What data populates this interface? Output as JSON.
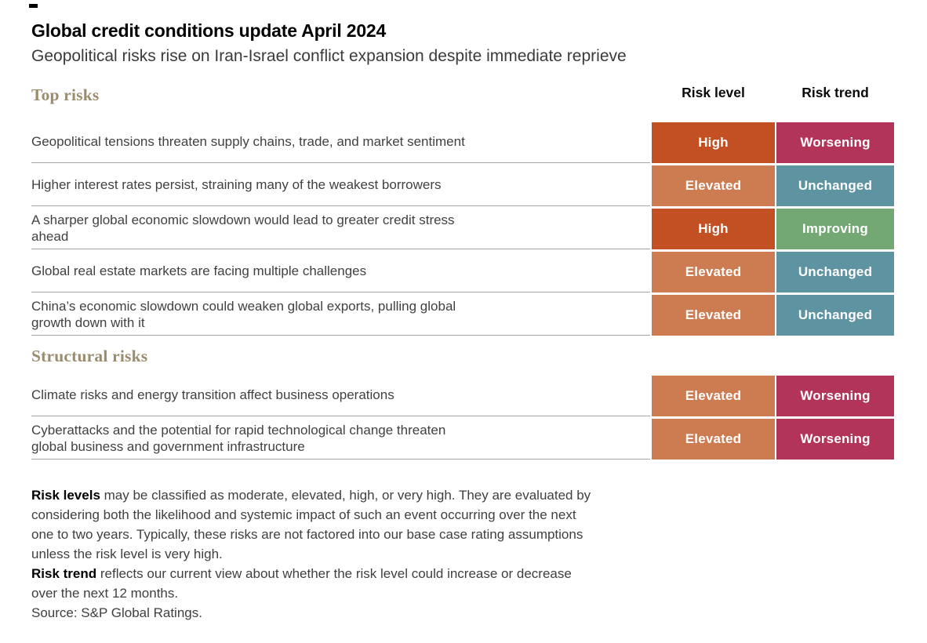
{
  "header": {
    "title": "Global credit conditions update April 2024",
    "subtitle": "Geopolitical risks rise on Iran-Israel conflict expansion despite immediate reprieve"
  },
  "table": {
    "column_headers": {
      "risk_level": "Risk level",
      "risk_trend": "Risk trend"
    },
    "sections": [
      {
        "label": "Top risks",
        "rows": [
          {
            "risk": "Geopolitical tensions threaten supply chains, trade, and market sentiment",
            "level": "High",
            "trend": "Worsening"
          },
          {
            "risk": "Higher interest rates persist, straining many of the weakest borrowers",
            "level": "Elevated",
            "trend": "Unchanged"
          },
          {
            "risk": "A sharper global economic slowdown would lead to greater credit stress\nahead",
            "level": "High",
            "trend": "Improving"
          },
          {
            "risk": "Global real estate markets are facing multiple challenges",
            "level": "Elevated",
            "trend": "Unchanged"
          },
          {
            "risk": "China’s economic slowdown could weaken global exports, pulling global\ngrowth down with it",
            "level": "Elevated",
            "trend": "Unchanged"
          }
        ]
      },
      {
        "label": "Structural risks",
        "rows": [
          {
            "risk": "Climate risks and energy transition affect business operations",
            "level": "Elevated",
            "trend": "Worsening"
          },
          {
            "risk": "Cyberattacks and the potential for rapid technological change threaten\nglobal business and government infrastructure",
            "level": "Elevated",
            "trend": "Worsening"
          }
        ]
      }
    ]
  },
  "legend_colors": {
    "level": {
      "High": "#C25023",
      "Elevated": "#CD7B51"
    },
    "trend": {
      "Worsening": "#B23559",
      "Unchanged": "#5E93A2",
      "Improving": "#73A875"
    }
  },
  "style_colors": {
    "section_heading": "#9C8C6E",
    "separator": "#a5a5a5",
    "badge_text": "#ffffff"
  },
  "footnotes": [
    {
      "bold": "Risk levels",
      "text": " may be classified as moderate, elevated, high, or very high. They are evaluated by\nconsidering both the likelihood and systemic impact of such an event occurring over the next\none to two years. Typically, these risks are not factored into our base case rating assumptions\nunless the risk level is very high."
    },
    {
      "bold": "Risk trend",
      "text": " reflects our current view about whether the risk level could increase or decrease\nover the next 12 months."
    },
    {
      "bold": "",
      "text": "Source: S&P Global Ratings."
    }
  ],
  "chart_data": {
    "type": "table",
    "title": "Global credit conditions update April 2024",
    "subtitle": "Geopolitical risks rise on Iran-Israel conflict expansion despite immediate reprieve",
    "columns": [
      "Risk",
      "Risk level",
      "Risk trend"
    ],
    "rows": [
      {
        "section": "Top risks",
        "risk": "Geopolitical tensions threaten supply chains, trade, and market sentiment",
        "risk_level": "High",
        "risk_trend": "Worsening"
      },
      {
        "section": "Top risks",
        "risk": "Higher interest rates persist, straining many of the weakest borrowers",
        "risk_level": "Elevated",
        "risk_trend": "Unchanged"
      },
      {
        "section": "Top risks",
        "risk": "A sharper global economic slowdown would lead to greater credit stress ahead",
        "risk_level": "High",
        "risk_trend": "Improving"
      },
      {
        "section": "Top risks",
        "risk": "Global real estate markets are facing multiple challenges",
        "risk_level": "Elevated",
        "risk_trend": "Unchanged"
      },
      {
        "section": "Top risks",
        "risk": "China’s economic slowdown could weaken global exports, pulling global growth down with it",
        "risk_level": "Elevated",
        "risk_trend": "Unchanged"
      },
      {
        "section": "Structural risks",
        "risk": "Climate risks and energy transition affect business operations",
        "risk_level": "Elevated",
        "risk_trend": "Worsening"
      },
      {
        "section": "Structural risks",
        "risk": "Cyberattacks and the potential for rapid technological change threaten global business and government infrastructure",
        "risk_level": "Elevated",
        "risk_trend": "Worsening"
      }
    ],
    "color_coding": {
      "risk_level": {
        "High": "#C25023",
        "Elevated": "#CD7B51"
      },
      "risk_trend": {
        "Worsening": "#B23559",
        "Unchanged": "#5E93A2",
        "Improving": "#73A875"
      }
    },
    "source": "S&P Global Ratings"
  }
}
